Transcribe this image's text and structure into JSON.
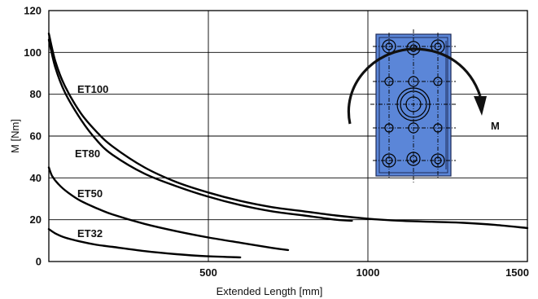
{
  "chart_data": {
    "type": "line",
    "xlabel": "Extended Length [mm]",
    "ylabel": "M [Nm]",
    "xlim": [
      0,
      1500
    ],
    "ylim": [
      0,
      120
    ],
    "x_ticks": [
      500,
      1000,
      1500
    ],
    "y_ticks": [
      0,
      20,
      40,
      60,
      80,
      100,
      120
    ],
    "grid": true,
    "series": [
      {
        "name": "ET100",
        "x": [
          0,
          20,
          50,
          100,
          150,
          200,
          300,
          400,
          500,
          600,
          700,
          800,
          900,
          1000,
          1100,
          1200,
          1300,
          1400,
          1500
        ],
        "y": [
          109,
          96,
          84,
          71,
          62,
          55,
          45,
          38,
          33,
          29,
          26,
          24,
          22,
          20.5,
          19.5,
          19,
          18.5,
          17.5,
          16
        ]
      },
      {
        "name": "ET80",
        "x": [
          0,
          20,
          50,
          100,
          150,
          200,
          300,
          400,
          500,
          600,
          700,
          800,
          900,
          950
        ],
        "y": [
          106,
          93,
          81,
          68,
          58,
          51,
          42,
          36,
          31,
          27,
          24,
          22,
          20,
          19.5
        ]
      },
      {
        "name": "ET50",
        "x": [
          0,
          10,
          30,
          60,
          100,
          150,
          200,
          300,
          400,
          500,
          600,
          700,
          750
        ],
        "y": [
          45,
          41,
          37,
          33,
          29,
          25.5,
          22.5,
          18,
          14.5,
          11.5,
          9,
          6.5,
          5.5
        ]
      },
      {
        "name": "ET32",
        "x": [
          0,
          20,
          50,
          100,
          150,
          200,
          300,
          400,
          500,
          600
        ],
        "y": [
          15.5,
          13.5,
          11.5,
          9.5,
          8,
          7,
          5,
          3.5,
          2.5,
          2
        ]
      }
    ],
    "annotation": "M",
    "colors": {
      "line": "#000000",
      "grid": "#000000",
      "plate": "#5b86d8",
      "plate_outline": "#1d2a56"
    },
    "icons": [
      "moment-arrow-icon",
      "flange-plate-icon"
    ]
  }
}
